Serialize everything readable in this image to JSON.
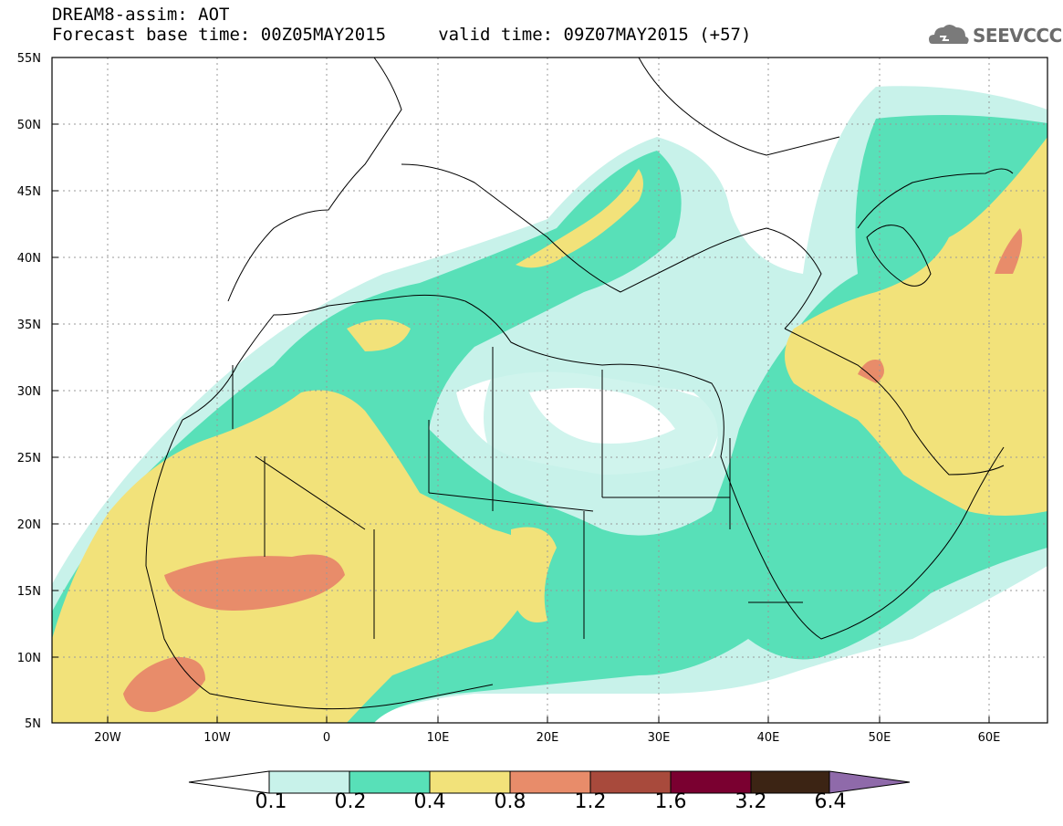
{
  "title_line1": "DREAM8-assim: AOT",
  "title_line2": "Forecast base time: 00Z05MAY2015     valid time: 09Z07MAY2015 (+57)",
  "logo_text": "SEEVCCC",
  "lat_labels": [
    "55N",
    "50N",
    "45N",
    "40N",
    "35N",
    "30N",
    "25N",
    "20N",
    "15N",
    "10N",
    "5N"
  ],
  "lon_labels": [
    "20W",
    "10W",
    "0",
    "10E",
    "20E",
    "30E",
    "40E",
    "50E",
    "60E"
  ],
  "colorbar": {
    "levels": [
      "0.1",
      "0.2",
      "0.4",
      "0.8",
      "1.2",
      "1.6",
      "3.2",
      "6.4"
    ],
    "colors": [
      "#ffffff",
      "#c8f2ea",
      "#58e0b8",
      "#f2e27a",
      "#e88c6a",
      "#a84a3c",
      "#7a0030",
      "#3c2414",
      "#8f6aaa"
    ]
  }
}
